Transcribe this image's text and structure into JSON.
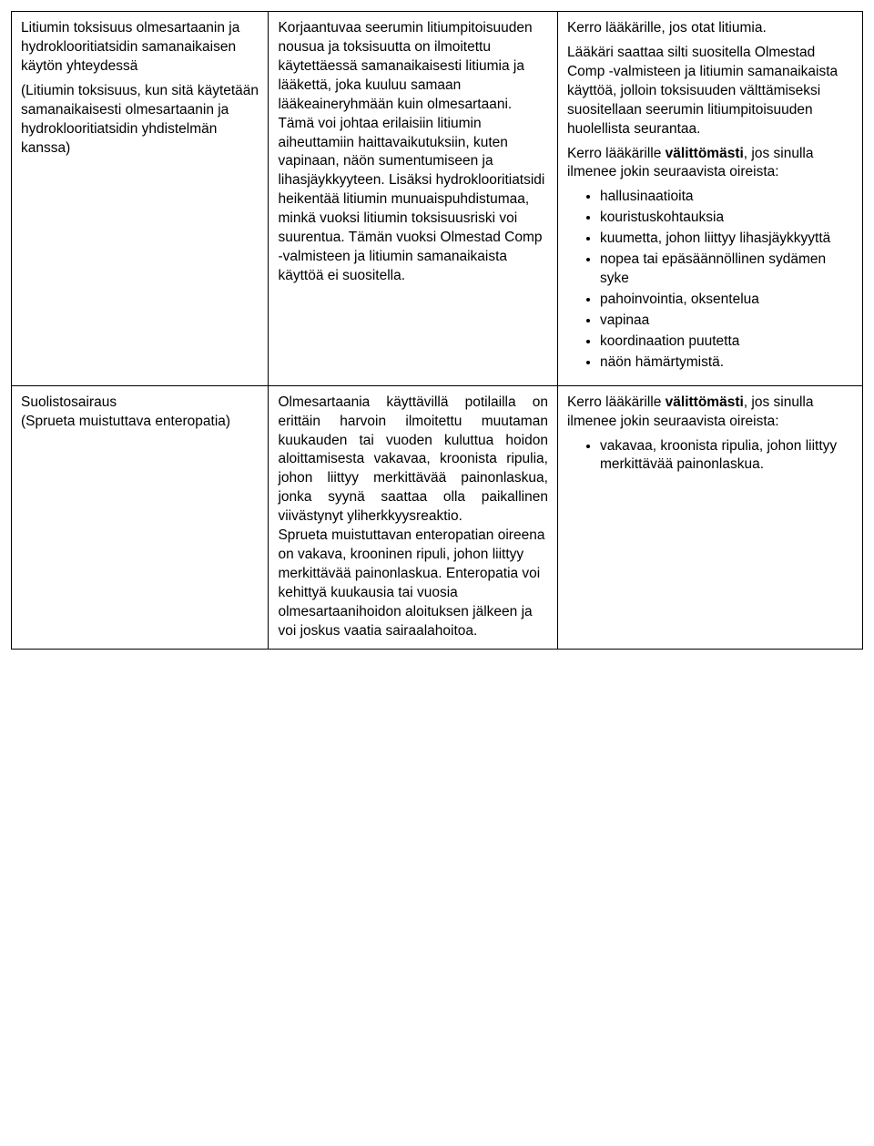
{
  "table": {
    "row1": {
      "c1": {
        "p1": "Litiumin toksisuus olmesartaanin ja hydroklooritiatsidin samanaikaisen käytön yhteydessä",
        "p2": "(Litiumin toksisuus, kun sitä käytetään samanaikaisesti olmesartaanin ja hydroklooritiatsidin yhdistelmän kanssa)"
      },
      "c2": {
        "p1": "Korjaantuvaa seerumin litiumpitoisuuden nousua ja toksisuutta on ilmoitettu käytettäessä samanaikaisesti litiumia ja lääkettä, joka kuuluu samaan lääkeaineryhmään kuin olmesartaani. Tämä voi johtaa erilaisiin litiumin aiheuttamiin haittavaikutuksiin, kuten vapinaan, näön sumentumiseen ja lihasjäykkyyteen. Lisäksi hydroklooritiatsidi heikentää litiumin munuaispuhdistumaa, minkä vuoksi litiumin toksisuusriski voi suurentua. Tämän vuoksi Olmestad Comp -valmisteen ja litiumin samanaikaista käyttöä ei suositella."
      },
      "c3": {
        "p1": "Kerro lääkärille, jos otat litiumia.",
        "p2": "Lääkäri saattaa silti suositella Olmestad Comp -valmisteen ja litiumin samanaikaista käyttöä, jolloin toksisuuden välttämiseksi suositellaan seerumin litiumpitoisuuden huolellista seurantaa.",
        "p3a": "Kerro lääkärille ",
        "p3b": "välittömästi",
        "p3c": ", jos sinulla ilmenee jokin seuraavista oireista:",
        "items": [
          "hallusinaatioita",
          "kouristuskohtauksia",
          "kuumetta, johon liittyy lihasjäykkyyttä",
          "nopea tai epäsäännöllinen sydämen syke",
          "pahoinvointia, oksentelua",
          "vapinaa",
          "koordinaation puutetta",
          "näön hämärtymistä."
        ]
      }
    },
    "row2": {
      "c1": {
        "p1": "Suolistosairaus",
        "p2": "(Sprueta muistuttava enteropatia)"
      },
      "c2": {
        "p1": "Olmesartaania käyttävillä potilailla on erittäin harvoin ilmoitettu muutaman kuukauden tai vuoden kuluttua hoidon aloittamisesta vakavaa, kroonista ripulia, johon liittyy merkittävää painonlaskua, jonka syynä saattaa olla paikallinen viivästynyt yliherkkyysreaktio.",
        "p2b": "Sprueta muistuttavan enteropatian oireena on vakava, krooninen ripuli, johon liittyy merkittävää painonlaskua. Enteropatia voi kehittyä kuukausia tai vuosia olmesartaanihoidon aloituksen jälkeen ja voi joskus vaatia sairaalahoitoa."
      },
      "c3": {
        "p1a": "Kerro lääkärille ",
        "p1b": "välittömästi",
        "p1c": ", jos sinulla ilmenee jokin seuraavista oireista:",
        "items": [
          "vakavaa, kroonista ripulia, johon liittyy merkittävää painonlaskua."
        ]
      }
    }
  }
}
